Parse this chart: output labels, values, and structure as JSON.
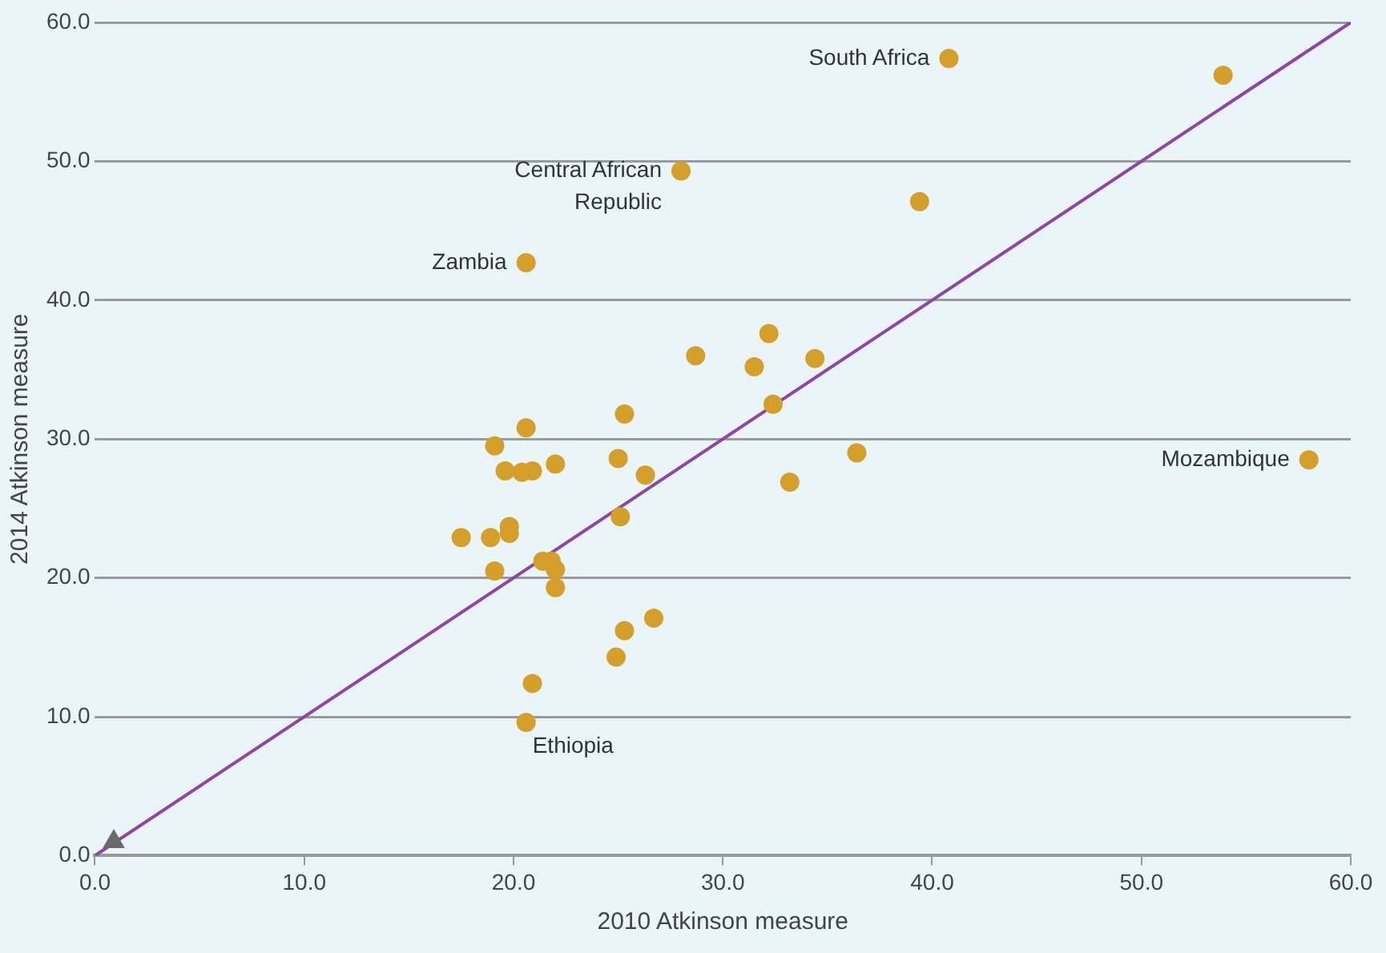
{
  "chart_data": {
    "type": "scatter",
    "xlabel": "2010 Atkinson measure",
    "ylabel": "2014 Atkinson measure",
    "xlim": [
      0,
      60
    ],
    "ylim": [
      0,
      60
    ],
    "xticks": [
      {
        "value": 0,
        "label": "0.0"
      },
      {
        "value": 10,
        "label": "10.0"
      },
      {
        "value": 20,
        "label": "20.0"
      },
      {
        "value": 30,
        "label": "30.0"
      },
      {
        "value": 40,
        "label": "40.0"
      },
      {
        "value": 50,
        "label": "50.0"
      },
      {
        "value": 60,
        "label": "60.0"
      }
    ],
    "yticks": [
      {
        "value": 0,
        "label": "0.0"
      },
      {
        "value": 10,
        "label": "10.0"
      },
      {
        "value": 20,
        "label": "20.0"
      },
      {
        "value": 30,
        "label": "30.0"
      },
      {
        "value": 40,
        "label": "40.0"
      },
      {
        "value": 50,
        "label": "50.0"
      },
      {
        "value": 60,
        "label": "60.0"
      }
    ],
    "grid": "y",
    "legend": false,
    "series": [
      {
        "marker": "circle",
        "color": "#d4a02a",
        "x": [
          40.8,
          53.9,
          28.0,
          39.4,
          20.6,
          28.7,
          32.2,
          31.5,
          34.4,
          32.4,
          25.3,
          20.6,
          19.1,
          19.6,
          20.4,
          20.9,
          22.0,
          25.0,
          26.3,
          36.4,
          33.2,
          25.1,
          17.5,
          18.9,
          19.8,
          19.8,
          19.1,
          21.4,
          21.8,
          22.0,
          22.0,
          26.7,
          25.3,
          24.9,
          20.9,
          20.6,
          58.0
        ],
        "values": [
          57.4,
          56.2,
          49.3,
          47.1,
          42.7,
          36.0,
          37.6,
          35.2,
          35.8,
          32.5,
          31.8,
          30.8,
          29.5,
          27.7,
          27.6,
          27.7,
          28.2,
          28.6,
          27.4,
          29.0,
          26.9,
          24.4,
          22.9,
          22.9,
          23.7,
          23.2,
          20.5,
          21.2,
          21.2,
          20.6,
          19.3,
          17.1,
          16.2,
          14.3,
          12.4,
          9.6,
          28.5
        ]
      },
      {
        "marker": "triangle",
        "color": "#6b6b6b",
        "x": [
          0.9
        ],
        "values": [
          1.0
        ]
      },
      {
        "type": "line",
        "marker": "none",
        "line_style": "solid",
        "color": "#8e44a8",
        "x": [
          0,
          60
        ],
        "values": [
          0,
          60
        ]
      }
    ],
    "annotations": [
      {
        "text": "South Africa",
        "x": 40.8,
        "y": 57.4
      },
      {
        "text": "Central African\nRepublic",
        "x": 28.0,
        "y": 49.3
      },
      {
        "text": "Zambia",
        "x": 20.6,
        "y": 42.7
      },
      {
        "text": "Mozambique",
        "x": 58.0,
        "y": 28.5
      },
      {
        "text": "Ethiopia",
        "x": 20.6,
        "y": 9.6
      }
    ]
  }
}
